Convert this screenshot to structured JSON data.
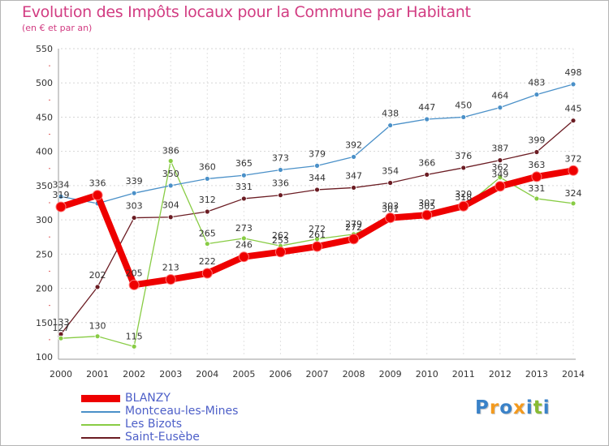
{
  "title": "Evolution des Impôts locaux pour la Commune par Habitant",
  "subtitle": "(en € et par an)",
  "brand": "Proxiti",
  "chart_data": {
    "type": "line",
    "title": "Evolution des Impôts locaux pour la Commune par Habitant",
    "subtitle": "(en € et par an)",
    "xlabel": "",
    "ylabel": "",
    "x": [
      "2000",
      "2001",
      "2002",
      "2003",
      "2004",
      "2005",
      "2006",
      "2007",
      "2008",
      "2009",
      "2010",
      "2011",
      "2012",
      "2013",
      "2014"
    ],
    "ylim": [
      100,
      550
    ],
    "yticks": [
      100,
      150,
      200,
      250,
      300,
      350,
      400,
      450,
      500,
      550
    ],
    "grid": true,
    "legend_position": "bottom-left",
    "series": [
      {
        "name": "Montceau-les-Mines",
        "color": "#4a90c8",
        "values": [
          334,
          324,
          339,
          350,
          360,
          365,
          373,
          379,
          392,
          438,
          447,
          450,
          464,
          483,
          498
        ],
        "labels": [
          "334",
          "",
          "339",
          "350",
          "360",
          "365",
          "373",
          "379",
          "392",
          "438",
          "447",
          "450",
          "464",
          "483",
          "498"
        ]
      },
      {
        "name": "Les Bizots",
        "color": "#88cc44",
        "values": [
          127,
          130,
          115,
          386,
          265,
          273,
          262,
          272,
          279,
          301,
          305,
          318,
          362,
          331,
          324
        ],
        "labels": [
          "127",
          "130",
          "115",
          "386",
          "265",
          "273",
          "262",
          "272",
          "279",
          "301",
          "305",
          "318",
          "362",
          "331",
          "324"
        ]
      },
      {
        "name": "Saint-Eusèbe",
        "color": "#6b1c23",
        "values": [
          133,
          202,
          303,
          304,
          312,
          331,
          336,
          344,
          347,
          354,
          366,
          376,
          387,
          399,
          445
        ],
        "labels": [
          "133",
          "202",
          "303",
          "304",
          "312",
          "331",
          "336",
          "344",
          "347",
          "354",
          "366",
          "376",
          "387",
          "399",
          "445"
        ]
      },
      {
        "name": "BLANZY",
        "color": "#ee0000",
        "values": [
          319,
          336,
          205,
          213,
          222,
          246,
          253,
          261,
          272,
          303,
          307,
          320,
          349,
          363,
          372
        ],
        "labels": [
          "319",
          "336",
          "205",
          "213",
          "222",
          "246",
          "253",
          "261",
          "272",
          "303",
          "307",
          "320",
          "349",
          "363",
          "372"
        ]
      }
    ]
  }
}
